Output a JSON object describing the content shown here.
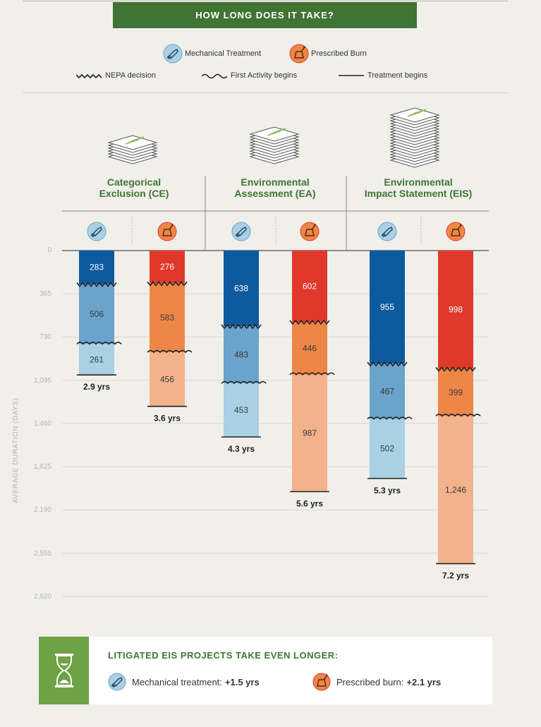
{
  "title": "HOW LONG DOES IT TAKE?",
  "legend": {
    "mechanical": "Mechanical Treatment",
    "burn": "Prescribed Burn",
    "nepa": "NEPA decision",
    "first_activity": "First Activity begins",
    "treatment": "Treatment begins"
  },
  "categories": [
    {
      "line1": "Categorical",
      "line2": "Exclusion (CE)"
    },
    {
      "line1": "Environmental",
      "line2": "Assessment (EA)"
    },
    {
      "line1": "Environmental",
      "line2": "Impact Statement (EIS)"
    }
  ],
  "colors": {
    "mech_dark": "#0d5a9e",
    "mech_mid": "#6aa3cc",
    "mech_light": "#a9d0e4",
    "burn_dark": "#e0392b",
    "burn_mid": "#ee8647",
    "burn_light": "#f2b28c",
    "green_dark": "#3f7434",
    "green_light": "#6fa244"
  },
  "chart_data": {
    "type": "bar",
    "stacked": true,
    "ylabel": "AVERAGE DURATION (DAYS)",
    "ylim": [
      0,
      2920
    ],
    "yticks": [
      "0",
      "365",
      "730",
      "1,095",
      "1,460",
      "1,825",
      "2,190",
      "2,555",
      "2,920"
    ],
    "segments": [
      "NEPA decision",
      "First Activity begins",
      "Treatment begins"
    ],
    "bars": [
      {
        "group": "CE",
        "kind": "mechanical",
        "values": [
          283,
          506,
          261
        ],
        "labels": [
          "283",
          "506",
          "261"
        ],
        "total_label": "2.9 yrs"
      },
      {
        "group": "CE",
        "kind": "burn",
        "values": [
          276,
          583,
          456
        ],
        "labels": [
          "276",
          "583",
          "456"
        ],
        "total_label": "3.6 yrs"
      },
      {
        "group": "EA",
        "kind": "mechanical",
        "values": [
          638,
          483,
          453
        ],
        "labels": [
          "638",
          "483",
          "453"
        ],
        "total_label": "4.3 yrs"
      },
      {
        "group": "EA",
        "kind": "burn",
        "values": [
          602,
          446,
          987
        ],
        "labels": [
          "602",
          "446",
          "987"
        ],
        "total_label": "5.6 yrs"
      },
      {
        "group": "EIS",
        "kind": "mechanical",
        "values": [
          955,
          467,
          502
        ],
        "labels": [
          "955",
          "467",
          "502"
        ],
        "total_label": "5.3 yrs"
      },
      {
        "group": "EIS",
        "kind": "burn",
        "values": [
          998,
          399,
          1246
        ],
        "labels": [
          "998",
          "399",
          "1,246"
        ],
        "total_label": "7.2 yrs"
      }
    ]
  },
  "litigated": {
    "title": "LITIGATED EIS PROJECTS TAKE EVEN LONGER:",
    "mech_label": "Mechanical treatment:",
    "mech_value": "+1.5 yrs",
    "burn_label": "Prescribed burn:",
    "burn_value": "+2.1 yrs"
  }
}
